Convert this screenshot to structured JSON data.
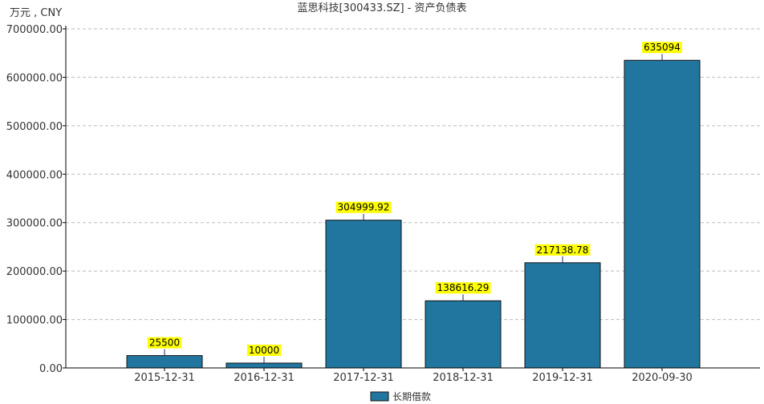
{
  "chart_data": {
    "type": "bar",
    "title": "蓝思科技[300433.SZ] - 资产负债表",
    "unit_label": "万元 , CNY",
    "categories": [
      "2015-12-31",
      "2016-12-31",
      "2017-12-31",
      "2018-12-31",
      "2019-12-31",
      "2020-09-30"
    ],
    "series": [
      {
        "name": "长期借款",
        "values": [
          25500,
          10000,
          304999.92,
          138616.29,
          217138.78,
          635094
        ],
        "value_labels": [
          "25500",
          "10000",
          "304999.92",
          "138616.29",
          "217138.78",
          "635094"
        ]
      }
    ],
    "yticks": [
      "0.00",
      "100000.00",
      "200000.00",
      "300000.00",
      "400000.00",
      "500000.00",
      "600000.00",
      "700000.00"
    ],
    "ylim": [
      0,
      700000
    ],
    "grid": true,
    "legend_position": "bottom-center",
    "colors": {
      "bar": "#21769f",
      "bar_border": "#111111",
      "label_bg": "#ffff00",
      "grid": "#bbbbbb",
      "axis": "#000000"
    }
  }
}
